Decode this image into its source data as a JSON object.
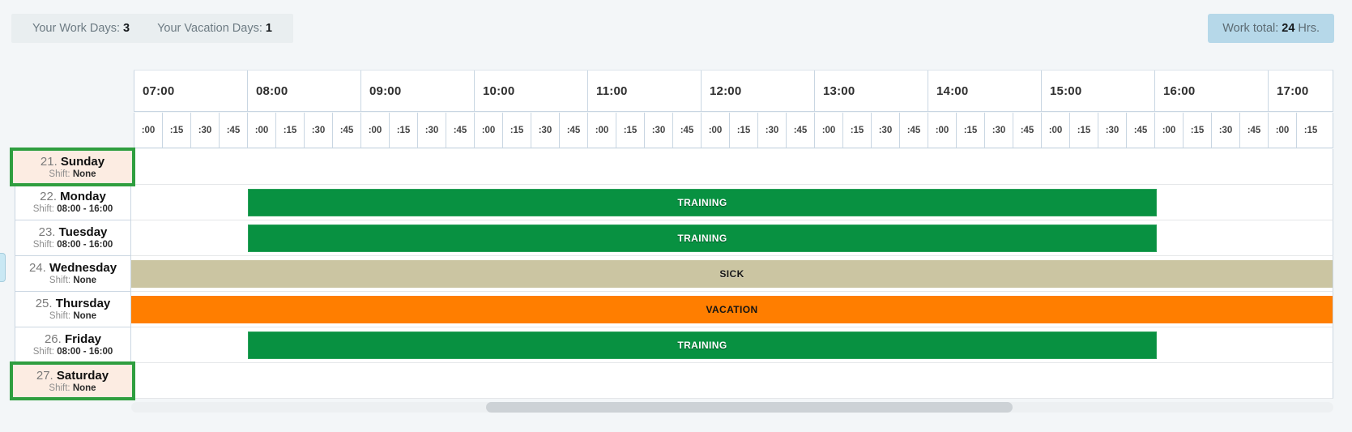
{
  "summary": {
    "work_days_label": "Your Work Days:",
    "work_days_value": "3",
    "vacation_days_label": "Your Vacation Days:",
    "vacation_days_value": "1",
    "work_total_label": "Work total:",
    "work_total_value": "24",
    "work_total_suffix": "Hrs."
  },
  "timeline": {
    "hours": [
      "07:00",
      "08:00",
      "09:00",
      "10:00",
      "11:00",
      "12:00",
      "13:00",
      "14:00",
      "15:00",
      "16:00",
      "17:00"
    ],
    "quarters": [
      ":00",
      ":15",
      ":30",
      ":45"
    ],
    "trailing_quarters": 2
  },
  "labels": {
    "shift_prefix": "Shift:"
  },
  "days": [
    {
      "number": "21.",
      "name": "Sunday",
      "shift": "None",
      "highlighted": true,
      "event": ""
    },
    {
      "number": "22.",
      "name": "Monday",
      "shift": "08:00 - 16:00",
      "highlighted": false,
      "event": "TRAINING"
    },
    {
      "number": "23.",
      "name": "Tuesday",
      "shift": "08:00 - 16:00",
      "highlighted": false,
      "event": "TRAINING"
    },
    {
      "number": "24.",
      "name": "Wednesday",
      "shift": "None",
      "highlighted": false,
      "event": "SICK"
    },
    {
      "number": "25.",
      "name": "Thursday",
      "shift": "None",
      "highlighted": false,
      "event": "VACATION"
    },
    {
      "number": "26.",
      "name": "Friday",
      "shift": "08:00 - 16:00",
      "highlighted": false,
      "event": "TRAINING"
    },
    {
      "number": "27.",
      "name": "Saturday",
      "shift": "None",
      "highlighted": true,
      "event": ""
    }
  ],
  "events_meta": {
    "training": {
      "start": "08:00",
      "end": "16:00"
    },
    "sick": {
      "span": "full-day"
    },
    "vacation": {
      "span": "full-day"
    }
  },
  "colors": {
    "training": "#089141",
    "sick": "#cbc5a2",
    "vacation": "#ff7e00",
    "highlight_border": "#2f9e3f",
    "highlight_bg": "#fcece2",
    "summary_bg": "#e9eef0",
    "work_total_bg": "#b6d8e9",
    "grid_border": "#c9d6e2",
    "page_bg": "#f3f6f8"
  }
}
